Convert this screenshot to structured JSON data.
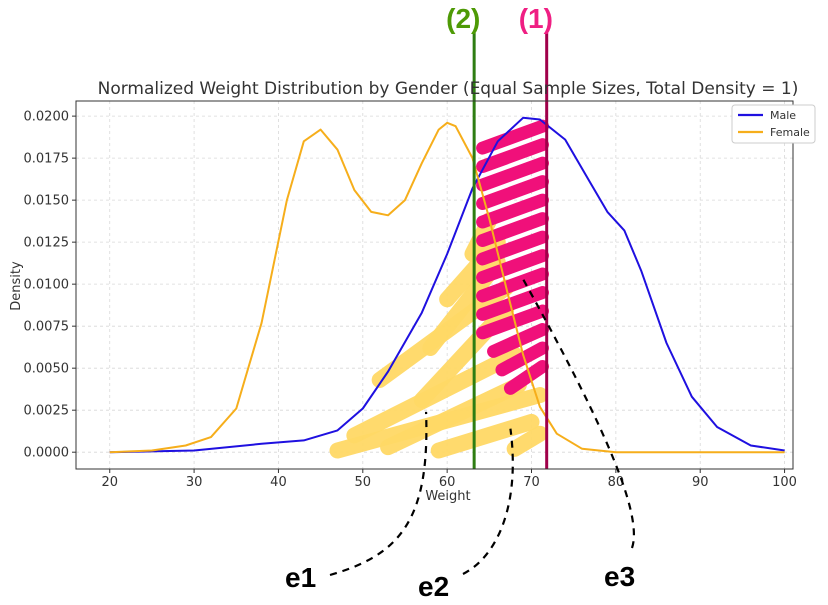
{
  "chart_data": {
    "type": "line",
    "title": "Normalized Weight Distribution by Gender (Equal Sample Sizes, Total Density = 1)",
    "xlabel": "Weight",
    "ylabel": "Density",
    "xlim": [
      16,
      101
    ],
    "ylim": [
      -0.001,
      0.0209
    ],
    "x_ticks": [
      "20",
      "30",
      "40",
      "50",
      "60",
      "70",
      "80",
      "90",
      "100"
    ],
    "y_ticks": [
      "0.0000",
      "0.0025",
      "0.0050",
      "0.0075",
      "0.0100",
      "0.0125",
      "0.0150",
      "0.0175",
      "0.0200"
    ],
    "grid": true,
    "legend_position": "top-right",
    "series": [
      {
        "name": "Male",
        "color": "#1f10e0",
        "points": [
          [
            20,
            0
          ],
          [
            30,
            0.0001
          ],
          [
            38,
            0.0005
          ],
          [
            43,
            0.0007
          ],
          [
            47,
            0.0013
          ],
          [
            50,
            0.0026
          ],
          [
            53,
            0.0048
          ],
          [
            57,
            0.0083
          ],
          [
            60,
            0.0118
          ],
          [
            63,
            0.0157
          ],
          [
            66,
            0.0185
          ],
          [
            69,
            0.0199
          ],
          [
            71,
            0.0198
          ],
          [
            74,
            0.0186
          ],
          [
            77,
            0.016
          ],
          [
            79,
            0.0143
          ],
          [
            81,
            0.0132
          ],
          [
            83,
            0.0108
          ],
          [
            86,
            0.0065
          ],
          [
            89,
            0.0033
          ],
          [
            92,
            0.0015
          ],
          [
            96,
            0.0004
          ],
          [
            100,
            0.0001
          ]
        ]
      },
      {
        "name": "Female",
        "color": "#f6ae1b",
        "points": [
          [
            20,
            0
          ],
          [
            25,
            0.0001
          ],
          [
            29,
            0.0004
          ],
          [
            32,
            0.0009
          ],
          [
            35,
            0.0026
          ],
          [
            38,
            0.0077
          ],
          [
            41,
            0.015
          ],
          [
            43,
            0.0185
          ],
          [
            45,
            0.0192
          ],
          [
            47,
            0.018
          ],
          [
            49,
            0.0156
          ],
          [
            51,
            0.0143
          ],
          [
            53,
            0.0141
          ],
          [
            55,
            0.015
          ],
          [
            57,
            0.0172
          ],
          [
            59,
            0.0192
          ],
          [
            60,
            0.0196
          ],
          [
            61,
            0.0194
          ],
          [
            63,
            0.0175
          ],
          [
            65,
            0.0139
          ],
          [
            67,
            0.0098
          ],
          [
            69,
            0.0058
          ],
          [
            71,
            0.0027
          ],
          [
            73,
            0.0011
          ],
          [
            76,
            0.0002
          ],
          [
            80,
            0
          ],
          [
            90,
            0
          ],
          [
            100,
            0
          ]
        ]
      }
    ],
    "vertical_lines": [
      {
        "label": "(1)",
        "x": 71.8,
        "color": "#a0004a",
        "label_color": "#ef1f83"
      },
      {
        "label": "(2)",
        "x": 63.2,
        "color": "#2e7d12",
        "label_color": "#4e9a06"
      }
    ],
    "shaded_regions": [
      {
        "name": "female-overlap-shading",
        "color": "#ffd966",
        "x_range": [
          47,
          71
        ]
      },
      {
        "name": "male-overlap-shading",
        "color": "#f0107a",
        "x_range": [
          64,
          71.8
        ]
      }
    ],
    "annotations": [
      {
        "label": "e1",
        "target_x": 57.5,
        "target_y": 0.0024
      },
      {
        "label": "e2",
        "target_x": 67.5,
        "target_y": 0.0014
      },
      {
        "label": "e3",
        "target_x": 69,
        "target_y": 0.0103
      }
    ]
  }
}
